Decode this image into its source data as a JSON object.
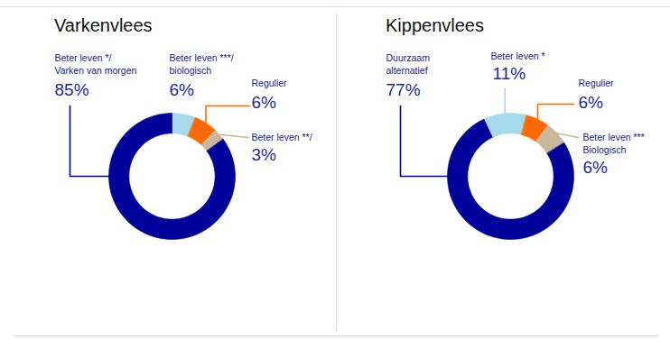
{
  "chart_data": [
    {
      "type": "donut",
      "title": "Varkenvlees",
      "categories": [
        "Beter leven ***/\nbiologisch",
        "Regulier",
        "Beter leven **/",
        "Beter leven */\nVarken van morgen"
      ],
      "values": [
        6,
        6,
        3,
        85
      ],
      "value_labels": [
        "6%",
        "6%",
        "3%",
        "85%"
      ],
      "colors": [
        "#a6d9ec",
        "#ff6a00",
        "#c8b79a",
        "#00009b"
      ],
      "data_labels": true,
      "tick_labels": false
    },
    {
      "type": "donut",
      "title": "Kippenvlees",
      "categories": [
        "Beter leven *",
        "Regulier",
        "Beter leven ***\nBiologisch",
        "Duurzaam\nalternatief"
      ],
      "values": [
        11,
        6,
        6,
        77
      ],
      "value_labels": [
        "11%",
        "6%",
        "6%",
        "77%"
      ],
      "colors": [
        "#a6d9ec",
        "#ff6a00",
        "#c8b79a",
        "#00009b"
      ],
      "data_labels": true,
      "tick_labels": false
    }
  ]
}
